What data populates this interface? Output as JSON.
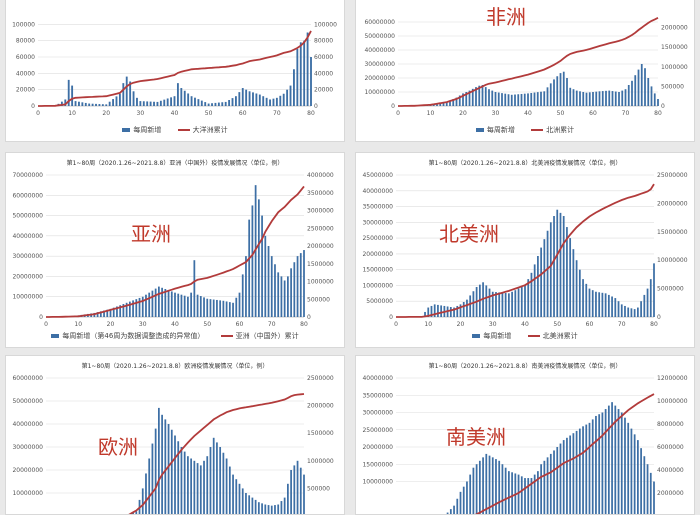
{
  "colors": {
    "bars": "#3d6fa5",
    "line": "#b23b3b",
    "grid": "#dddddd"
  },
  "chart_data": [
    {
      "type": "bar",
      "title": "",
      "region_label": "",
      "legend": [
        "每周新增",
        "大洋洲累计"
      ],
      "x": [
        0,
        5,
        8,
        9,
        10,
        11,
        15,
        20,
        24,
        25,
        26,
        27,
        28,
        29,
        30,
        35,
        40,
        41,
        42,
        45,
        50,
        55,
        58,
        60,
        62,
        65,
        68,
        70,
        72,
        74,
        75,
        76,
        77,
        78,
        79,
        80
      ],
      "weekly": [
        0,
        0,
        8000,
        32000,
        25000,
        6000,
        3000,
        2000,
        15000,
        28000,
        36000,
        30000,
        18000,
        10000,
        6000,
        5000,
        12000,
        28000,
        22000,
        12000,
        3000,
        5000,
        12000,
        22000,
        18000,
        14000,
        8000,
        10000,
        15000,
        25000,
        45000,
        70000,
        78000,
        80000,
        90000,
        60000
      ],
      "cumulative": [
        0,
        200,
        2000,
        6000,
        9000,
        10000,
        11000,
        12000,
        16000,
        20000,
        24000,
        27000,
        28500,
        29500,
        30500,
        33000,
        38000,
        40500,
        42000,
        45000,
        46500,
        48000,
        50000,
        52000,
        55000,
        57000,
        60000,
        62000,
        65000,
        67000,
        69000,
        71000,
        74000,
        78000,
        84000,
        92000
      ],
      "xlim": [
        0,
        80
      ],
      "x_ticks": [
        0,
        10,
        20,
        30,
        40,
        50,
        60,
        70,
        80
      ],
      "y_left": [
        0,
        120000
      ],
      "y_left_ticks": [
        0,
        20000,
        40000,
        60000,
        80000,
        100000
      ],
      "y_right": [
        0,
        120000
      ],
      "y_right_ticks": [
        0,
        20000,
        40000,
        60000,
        80000,
        100000
      ]
    },
    {
      "type": "bar",
      "title": "",
      "region_label": "非洲",
      "legend": [
        "每周新增",
        "北洲累计"
      ],
      "x": [
        0,
        5,
        10,
        15,
        18,
        20,
        22,
        24,
        25,
        26,
        27,
        28,
        30,
        35,
        40,
        45,
        48,
        50,
        51,
        52,
        53,
        55,
        58,
        60,
        62,
        65,
        68,
        70,
        72,
        73,
        74,
        75,
        76,
        77,
        78,
        79,
        80
      ],
      "weekly": [
        0,
        0,
        500000,
        3000000,
        6000000,
        9000000,
        11000000,
        13500000,
        14500000,
        15000000,
        13500000,
        12000000,
        10000000,
        8000000,
        9000000,
        10500000,
        19000000,
        23500000,
        24500000,
        20000000,
        13000000,
        11000000,
        9500000,
        10000000,
        10500000,
        11000000,
        10000000,
        12000000,
        18000000,
        22000000,
        26000000,
        30000000,
        27000000,
        20000000,
        14000000,
        9000000,
        5000000
      ],
      "cumulative": [
        0,
        5000,
        30000,
        100000,
        180000,
        260000,
        340000,
        420000,
        460000,
        500000,
        540000,
        570000,
        600000,
        700000,
        800000,
        930000,
        1050000,
        1150000,
        1220000,
        1280000,
        1330000,
        1380000,
        1430000,
        1480000,
        1530000,
        1600000,
        1660000,
        1720000,
        1810000,
        1870000,
        1940000,
        2000000,
        2060000,
        2120000,
        2170000,
        2210000,
        2250000
      ],
      "xlim": [
        0,
        80
      ],
      "x_ticks": [
        0,
        10,
        20,
        30,
        40,
        50,
        60,
        70,
        80
      ],
      "y_left": [
        0,
        70000000
      ],
      "y_left_ticks": [
        0,
        10000000,
        20000000,
        30000000,
        40000000,
        50000000,
        60000000
      ],
      "y_right": [
        0,
        2500000
      ],
      "y_right_ticks": [
        0,
        500000,
        1000000,
        1500000,
        2000000
      ]
    },
    {
      "type": "bar",
      "title": "第1~80周（2020.1.26~2021.8.8）亚洲（中国外）疫情发展情况（单位，例）",
      "region_label": "亚洲",
      "legend": [
        "每周新增（第46周为数据调整造成的异常值）",
        "亚洲（中国外）累计"
      ],
      "x": [
        0,
        5,
        10,
        15,
        20,
        25,
        30,
        35,
        40,
        44,
        45,
        46,
        47,
        50,
        55,
        58,
        60,
        62,
        63,
        64,
        65,
        66,
        67,
        68,
        70,
        72,
        74,
        75,
        76,
        78,
        80
      ],
      "weekly": [
        0,
        100000,
        800000,
        2000000,
        4000000,
        7000000,
        10000000,
        15000000,
        12000000,
        10000000,
        12000000,
        28000000,
        11000000,
        9000000,
        8000000,
        7000000,
        12000000,
        30000000,
        48000000,
        55000000,
        65000000,
        58000000,
        50000000,
        40000000,
        30000000,
        22000000,
        18000000,
        20000000,
        24000000,
        30000000,
        33000000
      ],
      "cumulative": [
        0,
        5000,
        20000,
        80000,
        200000,
        320000,
        450000,
        650000,
        800000,
        900000,
        930000,
        1000000,
        1050000,
        1100000,
        1250000,
        1350000,
        1450000,
        1550000,
        1650000,
        1750000,
        1900000,
        2050000,
        2200000,
        2400000,
        2700000,
        2950000,
        3100000,
        3200000,
        3300000,
        3450000,
        3680000
      ],
      "xlim": [
        0,
        80
      ],
      "x_ticks": [
        0,
        10,
        20,
        30,
        40,
        50,
        60,
        70,
        80
      ],
      "y_left": [
        0,
        70000000
      ],
      "y_left_ticks": [
        0,
        10000000,
        20000000,
        30000000,
        40000000,
        50000000,
        60000000,
        70000000
      ],
      "y_right": [
        0,
        4000000
      ],
      "y_right_ticks": [
        0,
        500000,
        1000000,
        1500000,
        2000000,
        2500000,
        3000000,
        3500000,
        4000000
      ]
    },
    {
      "type": "bar",
      "title": "第1~80周（2020.1.26~2021.8.8）北美洲疫情发展情况（单位，例）",
      "region_label": "北美洲",
      "legend": [
        "每周新增",
        "北美洲累计"
      ],
      "x": [
        0,
        8,
        10,
        12,
        15,
        18,
        20,
        22,
        25,
        27,
        30,
        35,
        40,
        42,
        45,
        48,
        50,
        52,
        54,
        56,
        58,
        60,
        62,
        65,
        68,
        70,
        72,
        74,
        75,
        76,
        77,
        78,
        79,
        80
      ],
      "weekly": [
        0,
        200000,
        3000000,
        4000000,
        3500000,
        3000000,
        4000000,
        5500000,
        9500000,
        11000000,
        8000000,
        7500000,
        10000000,
        14000000,
        22000000,
        30000000,
        34000000,
        32000000,
        25000000,
        18000000,
        12000000,
        9000000,
        8000000,
        7500000,
        6000000,
        4000000,
        3000000,
        2500000,
        3000000,
        5000000,
        7000000,
        9000000,
        12000000,
        17000000
      ],
      "cumulative": [
        0,
        20000,
        200000,
        500000,
        900000,
        1300000,
        1700000,
        2100000,
        2700000,
        3200000,
        3800000,
        4600000,
        5600000,
        6300000,
        7500000,
        9000000,
        11000000,
        13000000,
        14500000,
        15800000,
        16800000,
        17700000,
        18400000,
        19300000,
        20100000,
        20600000,
        21000000,
        21300000,
        21500000,
        21700000,
        21900000,
        22100000,
        22500000,
        23400000
      ],
      "xlim": [
        0,
        80
      ],
      "x_ticks": [
        0,
        10,
        20,
        30,
        40,
        50,
        60,
        70,
        80
      ],
      "y_left": [
        0,
        45000000
      ],
      "y_left_ticks": [
        0,
        5000000,
        10000000,
        15000000,
        20000000,
        25000000,
        30000000,
        35000000,
        40000000,
        45000000
      ],
      "y_right": [
        0,
        25000000
      ],
      "y_right_ticks": [
        0,
        5000000,
        10000000,
        15000000,
        20000000,
        25000000
      ]
    },
    {
      "type": "bar",
      "title": "第1~80周（2020.1.26~2021.8.8）欧洲疫情发展情况（单位，例）",
      "region_label": "欧洲",
      "legend": [],
      "x": [
        0,
        5,
        10,
        15,
        20,
        25,
        28,
        30,
        32,
        34,
        35,
        36,
        38,
        40,
        42,
        44,
        46,
        48,
        50,
        52,
        54,
        56,
        58,
        60,
        62,
        64,
        66,
        68,
        70,
        72,
        74,
        75,
        76,
        77,
        78,
        80
      ],
      "weekly": [
        0,
        0,
        0,
        0,
        0,
        0,
        2000000,
        12000000,
        25000000,
        38000000,
        47000000,
        44000000,
        40000000,
        35000000,
        30000000,
        26000000,
        24000000,
        22000000,
        26000000,
        34000000,
        30000000,
        25000000,
        18000000,
        14000000,
        10000000,
        8000000,
        6000000,
        5000000,
        4500000,
        5000000,
        8000000,
        14000000,
        20000000,
        22000000,
        24000000,
        18000000
      ],
      "cumulative": [
        0,
        0,
        0,
        0,
        0,
        0,
        100000,
        200000,
        350000,
        500000,
        650000,
        750000,
        900000,
        1050000,
        1200000,
        1330000,
        1450000,
        1550000,
        1650000,
        1750000,
        1820000,
        1880000,
        1920000,
        1950000,
        1970000,
        1990000,
        2010000,
        2030000,
        2050000,
        2080000,
        2110000,
        2140000,
        2170000,
        2190000,
        2200000,
        2210000
      ],
      "xlim": [
        0,
        80
      ],
      "x_ticks": [],
      "y_left": [
        0,
        60000000
      ],
      "y_left_ticks": [
        10000000,
        20000000,
        30000000,
        40000000,
        50000000,
        60000000
      ],
      "y_right": [
        0,
        2500000
      ],
      "y_right_ticks": [
        500000,
        1000000,
        1500000,
        2000000,
        2500000
      ]
    },
    {
      "type": "bar",
      "title": "第1~80周（2020.1.26~2021.8.8）南美洲疫情发展情况（单位，例）",
      "region_label": "南美洲",
      "legend": [],
      "x": [
        0,
        5,
        10,
        12,
        15,
        18,
        20,
        22,
        24,
        25,
        26,
        27,
        28,
        30,
        32,
        35,
        38,
        40,
        42,
        44,
        45,
        48,
        50,
        52,
        55,
        58,
        60,
        62,
        64,
        65,
        66,
        67,
        68,
        70,
        72,
        75,
        78,
        80
      ],
      "weekly": [
        0,
        0,
        0,
        0,
        0,
        3000000,
        7000000,
        10000000,
        14000000,
        15000000,
        16000000,
        17000000,
        18000000,
        17000000,
        16000000,
        13000000,
        12000000,
        11000000,
        11000000,
        13000000,
        15000000,
        18000000,
        20000000,
        22000000,
        24000000,
        26000000,
        27000000,
        29000000,
        30000000,
        31000000,
        32000000,
        33000000,
        32000000,
        30000000,
        27000000,
        22000000,
        15000000,
        10000000
      ],
      "cumulative": [
        0,
        0,
        0,
        0,
        0,
        0,
        0,
        0,
        50000,
        150000,
        300000,
        450000,
        600000,
        900000,
        1200000,
        1600000,
        2000000,
        2400000,
        2800000,
        3200000,
        3400000,
        3800000,
        4200000,
        4600000,
        5000000,
        5500000,
        6000000,
        6500000,
        7000000,
        7300000,
        7600000,
        7900000,
        8200000,
        8700000,
        9200000,
        9800000,
        10300000,
        10600000
      ],
      "xlim": [
        0,
        80
      ],
      "x_ticks": [],
      "y_left": [
        0,
        40000000
      ],
      "y_left_ticks": [
        10000000,
        15000000,
        20000000,
        25000000,
        30000000,
        35000000,
        40000000
      ],
      "y_right": [
        0,
        12000000
      ],
      "y_right_ticks": [
        2000000,
        4000000,
        6000000,
        8000000,
        10000000,
        12000000
      ]
    }
  ]
}
